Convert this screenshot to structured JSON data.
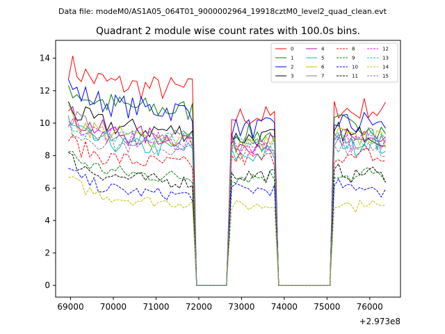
{
  "chart_data": {
    "type": "line",
    "suptitle": "Data file: modeM0/AS1A05_064T01_9000002964_19918cztM0_level2_quad_clean.evt",
    "title": "Quadrant 2 module wise count rates with 100.0s bins.",
    "xlabel": "",
    "ylabel": "",
    "x_offset_label": "+2.973e8",
    "xlim": [
      68650,
      76720
    ],
    "ylim": [
      -0.72,
      15.1
    ],
    "xticks": [
      69000,
      70000,
      71000,
      72000,
      73000,
      74000,
      75000,
      76000
    ],
    "xtick_labels": [
      "69000",
      "70000",
      "71000",
      "72000",
      "73000",
      "74000",
      "75000",
      "76000"
    ],
    "yticks": [
      0,
      2,
      4,
      6,
      8,
      10,
      12,
      14
    ],
    "ytick_labels": [
      "0",
      "2",
      "4",
      "6",
      "8",
      "10",
      "12",
      "14"
    ],
    "legend_position": "top-right",
    "segments": [
      {
        "start": 68950,
        "end": 71850,
        "step": 100
      },
      {
        "start": 72770,
        "end": 73770,
        "step": 100
      },
      {
        "start": 75170,
        "end": 76370,
        "step": 100
      }
    ],
    "gaps": [
      {
        "x": [
          71850,
          71950,
          72050,
          72150,
          72250,
          72350,
          72450,
          72550,
          72650,
          72770
        ]
      },
      {
        "x": [
          73770,
          73870,
          73970,
          74070,
          74170,
          74270,
          74370,
          74470,
          74570,
          74670,
          74770,
          74870,
          74970,
          75070,
          75170
        ]
      }
    ],
    "series": [
      {
        "name": "0",
        "color": "#ff0000",
        "dash": "solid",
        "levels": [
          12.3,
          10.4,
          10.8
        ]
      },
      {
        "name": "1",
        "color": "#008000",
        "dash": "solid",
        "levels": [
          11.0,
          9.3,
          9.8
        ]
      },
      {
        "name": "2",
        "color": "#0000ff",
        "dash": "solid",
        "levels": [
          11.0,
          9.7,
          10.0
        ]
      },
      {
        "name": "3",
        "color": "#000000",
        "dash": "solid",
        "levels": [
          9.7,
          9.1,
          9.3
        ]
      },
      {
        "name": "4",
        "color": "#bf00bf",
        "dash": "solid",
        "levels": [
          9.3,
          8.8,
          9.0
        ]
      },
      {
        "name": "5",
        "color": "#00bfbf",
        "dash": "solid",
        "levels": [
          8.6,
          8.0,
          8.7
        ]
      },
      {
        "name": "6",
        "color": "#bfbf00",
        "dash": "solid",
        "levels": [
          9.2,
          8.7,
          9.1
        ]
      },
      {
        "name": "7",
        "color": "#808080",
        "dash": "solid",
        "levels": [
          9.2,
          8.8,
          9.1
        ]
      },
      {
        "name": "8",
        "color": "#ff0000",
        "dash": "dashed",
        "levels": [
          7.7,
          7.8,
          7.9
        ]
      },
      {
        "name": "9",
        "color": "#008000",
        "dash": "dashed",
        "levels": [
          6.9,
          6.7,
          6.8
        ]
      },
      {
        "name": "10",
        "color": "#0000ff",
        "dash": "dashed",
        "levels": [
          5.8,
          5.9,
          6.0
        ]
      },
      {
        "name": "11",
        "color": "#000000",
        "dash": "dashed",
        "levels": [
          6.6,
          6.8,
          6.9
        ]
      },
      {
        "name": "12",
        "color": "#ff00ff",
        "dash": "dashed",
        "levels": [
          9.0,
          8.6,
          8.9
        ]
      },
      {
        "name": "13",
        "color": "#00bfbf",
        "dash": "dashed",
        "levels": [
          9.1,
          8.6,
          9.0
        ]
      },
      {
        "name": "14",
        "color": "#bfbf00",
        "dash": "dashed",
        "levels": [
          5.3,
          4.9,
          5.0
        ]
      },
      {
        "name": "15",
        "color": "#808080",
        "dash": "dashed",
        "levels": [
          8.6,
          8.3,
          8.6
        ]
      }
    ]
  }
}
